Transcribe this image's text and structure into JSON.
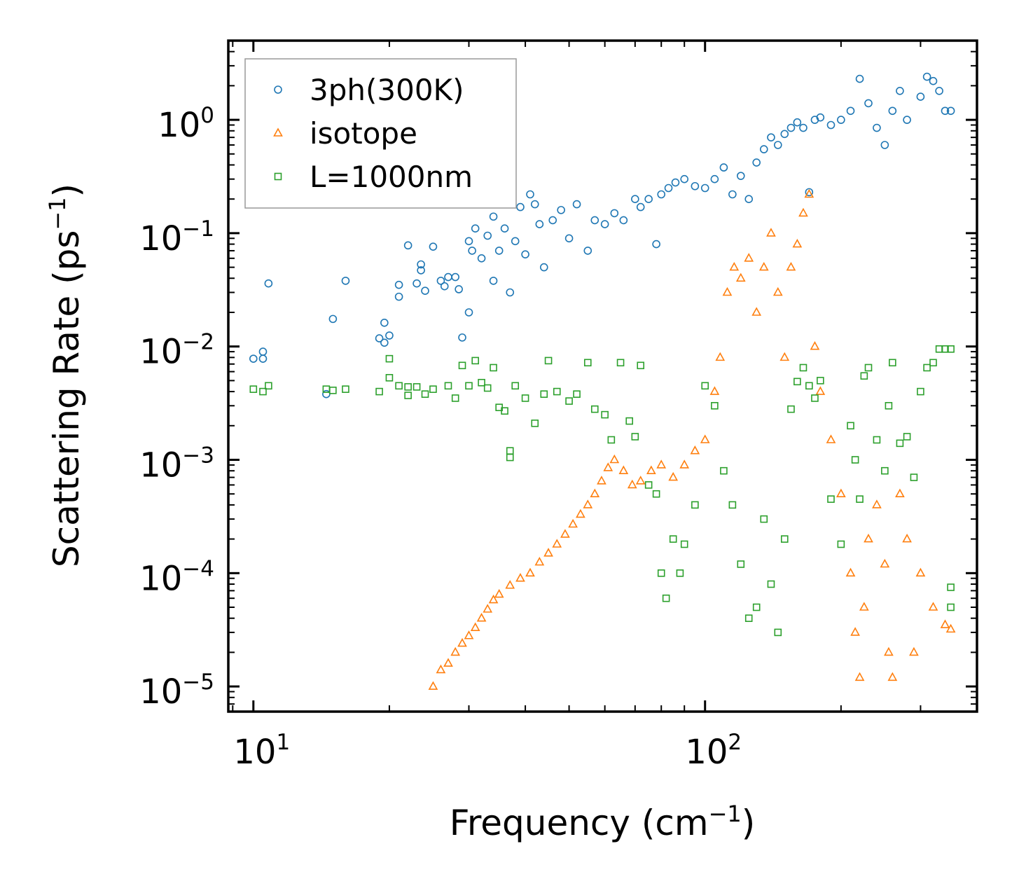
{
  "chart_data": {
    "type": "scatter",
    "title": "",
    "xlabel": "Frequency (cm",
    "xlabel_sup": "−1",
    "xlabel_tail": ")",
    "ylabel": "Scattering Rate (ps",
    "ylabel_sup": "−1",
    "ylabel_tail": ")",
    "xscale": "log",
    "yscale": "log",
    "xlim": [
      8.8,
      400
    ],
    "ylim": [
      6e-06,
      5
    ],
    "x_ticks": [
      {
        "value": 10,
        "base": "10",
        "exp": "1"
      },
      {
        "value": 100,
        "base": "10",
        "exp": "2"
      }
    ],
    "y_ticks": [
      {
        "value": 1,
        "base": "10",
        "exp": "0"
      },
      {
        "value": 0.1,
        "base": "10",
        "exp": "−1"
      },
      {
        "value": 0.01,
        "base": "10",
        "exp": "−2"
      },
      {
        "value": 0.001,
        "base": "10",
        "exp": "−3"
      },
      {
        "value": 0.0001,
        "base": "10",
        "exp": "−4"
      },
      {
        "value": 1e-05,
        "base": "10",
        "exp": "−5"
      }
    ],
    "legend_position": "top-left",
    "series": [
      {
        "name": "3ph(300K)",
        "marker": "circle",
        "color": "#1f77b4",
        "points": [
          [
            10,
            0.0078
          ],
          [
            10.5,
            0.0078
          ],
          [
            10.5,
            0.009
          ],
          [
            10.8,
            0.036
          ],
          [
            14.5,
            0.0038
          ],
          [
            15,
            0.0175
          ],
          [
            16,
            0.038
          ],
          [
            19,
            0.0118
          ],
          [
            19.5,
            0.0108
          ],
          [
            19.5,
            0.0162
          ],
          [
            20,
            0.0125
          ],
          [
            21,
            0.035
          ],
          [
            21,
            0.0275
          ],
          [
            22,
            0.078
          ],
          [
            23,
            0.036
          ],
          [
            23.5,
            0.047
          ],
          [
            23.5,
            0.053
          ],
          [
            24,
            0.031
          ],
          [
            25,
            0.076
          ],
          [
            26,
            0.038
          ],
          [
            26.5,
            0.034
          ],
          [
            27,
            0.041
          ],
          [
            28,
            0.041
          ],
          [
            28.5,
            0.032
          ],
          [
            29,
            0.012
          ],
          [
            30,
            0.02
          ],
          [
            30,
            0.085
          ],
          [
            30.5,
            0.07
          ],
          [
            31,
            0.11
          ],
          [
            32,
            0.06
          ],
          [
            33,
            0.095
          ],
          [
            34,
            0.038
          ],
          [
            34,
            0.14
          ],
          [
            35,
            0.07
          ],
          [
            36,
            0.11
          ],
          [
            37,
            0.03
          ],
          [
            38,
            0.085
          ],
          [
            39,
            0.17
          ],
          [
            40,
            0.065
          ],
          [
            41,
            0.22
          ],
          [
            42,
            0.18
          ],
          [
            43,
            0.12
          ],
          [
            44,
            0.05
          ],
          [
            46,
            0.13
          ],
          [
            48,
            0.16
          ],
          [
            50,
            0.09
          ],
          [
            52,
            0.18
          ],
          [
            55,
            0.07
          ],
          [
            57,
            0.13
          ],
          [
            60,
            0.12
          ],
          [
            63,
            0.15
          ],
          [
            66,
            0.13
          ],
          [
            70,
            0.2
          ],
          [
            72,
            0.17
          ],
          [
            75,
            0.2
          ],
          [
            78,
            0.08
          ],
          [
            80,
            0.22
          ],
          [
            83,
            0.25
          ],
          [
            86,
            0.28
          ],
          [
            90,
            0.3
          ],
          [
            95,
            0.26
          ],
          [
            100,
            0.25
          ],
          [
            105,
            0.3
          ],
          [
            110,
            0.38
          ],
          [
            115,
            0.22
          ],
          [
            120,
            0.32
          ],
          [
            125,
            0.2
          ],
          [
            130,
            0.42
          ],
          [
            135,
            0.55
          ],
          [
            140,
            0.7
          ],
          [
            145,
            0.6
          ],
          [
            150,
            0.75
          ],
          [
            155,
            0.85
          ],
          [
            160,
            0.95
          ],
          [
            165,
            0.85
          ],
          [
            170,
            0.23
          ],
          [
            175,
            1.0
          ],
          [
            180,
            1.05
          ],
          [
            190,
            0.9
          ],
          [
            200,
            1.0
          ],
          [
            210,
            1.2
          ],
          [
            220,
            2.3
          ],
          [
            230,
            1.4
          ],
          [
            240,
            0.85
          ],
          [
            250,
            0.6
          ],
          [
            260,
            1.2
          ],
          [
            270,
            1.8
          ],
          [
            280,
            1.0
          ],
          [
            300,
            1.6
          ],
          [
            310,
            2.4
          ],
          [
            320,
            2.2
          ],
          [
            330,
            1.8
          ],
          [
            340,
            1.2
          ],
          [
            350,
            1.2
          ]
        ]
      },
      {
        "name": "isotope",
        "marker": "triangle",
        "color": "#ff7f0e",
        "points": [
          [
            25,
            1e-05
          ],
          [
            26,
            1.4e-05
          ],
          [
            27,
            1.6e-05
          ],
          [
            28,
            2e-05
          ],
          [
            29,
            2.4e-05
          ],
          [
            30,
            2.8e-05
          ],
          [
            31,
            3.3e-05
          ],
          [
            32,
            4e-05
          ],
          [
            33,
            4.8e-05
          ],
          [
            34,
            5.8e-05
          ],
          [
            35,
            6.5e-05
          ],
          [
            37,
            7.8e-05
          ],
          [
            39,
            9e-05
          ],
          [
            41,
            0.0001
          ],
          [
            43,
            0.000125
          ],
          [
            45,
            0.00015
          ],
          [
            47,
            0.00018
          ],
          [
            49,
            0.00022
          ],
          [
            51,
            0.00027
          ],
          [
            53,
            0.00033
          ],
          [
            55,
            0.0004
          ],
          [
            57,
            0.0005
          ],
          [
            59,
            0.00065
          ],
          [
            61,
            0.00085
          ],
          [
            63,
            0.001
          ],
          [
            66,
            0.0008
          ],
          [
            69,
            0.0006
          ],
          [
            72,
            0.00065
          ],
          [
            76,
            0.0008
          ],
          [
            80,
            0.0009
          ],
          [
            85,
            0.0007
          ],
          [
            90,
            0.0009
          ],
          [
            95,
            0.0012
          ],
          [
            100,
            0.0015
          ],
          [
            105,
            0.004
          ],
          [
            108,
            0.008
          ],
          [
            112,
            0.03
          ],
          [
            116,
            0.05
          ],
          [
            120,
            0.04
          ],
          [
            125,
            0.06
          ],
          [
            130,
            0.02
          ],
          [
            135,
            0.05
          ],
          [
            140,
            0.1
          ],
          [
            145,
            0.03
          ],
          [
            150,
            0.008
          ],
          [
            155,
            0.05
          ],
          [
            160,
            0.08
          ],
          [
            165,
            0.15
          ],
          [
            170,
            0.22
          ],
          [
            175,
            0.01
          ],
          [
            180,
            0.004
          ],
          [
            190,
            0.0015
          ],
          [
            200,
            0.0005
          ],
          [
            210,
            0.0001
          ],
          [
            215,
            3e-05
          ],
          [
            220,
            1.2e-05
          ],
          [
            225,
            5e-05
          ],
          [
            230,
            0.0002
          ],
          [
            240,
            0.0004
          ],
          [
            250,
            0.00012
          ],
          [
            255,
            2e-05
          ],
          [
            260,
            1.2e-05
          ],
          [
            270,
            0.0005
          ],
          [
            280,
            0.0002
          ],
          [
            290,
            2e-05
          ],
          [
            300,
            0.0001
          ],
          [
            320,
            5e-05
          ],
          [
            340,
            3.5e-05
          ],
          [
            350,
            3.2e-05
          ]
        ]
      },
      {
        "name": "L=1000nm",
        "marker": "square",
        "color": "#2ca02c",
        "points": [
          [
            10,
            0.0042
          ],
          [
            10.5,
            0.004
          ],
          [
            10.8,
            0.0045
          ],
          [
            14.5,
            0.0042
          ],
          [
            15,
            0.0041
          ],
          [
            16,
            0.0042
          ],
          [
            19,
            0.004
          ],
          [
            20,
            0.0078
          ],
          [
            20,
            0.0053
          ],
          [
            21,
            0.0045
          ],
          [
            22,
            0.0044
          ],
          [
            22,
            0.0037
          ],
          [
            23,
            0.0044
          ],
          [
            24,
            0.0038
          ],
          [
            25,
            0.0042
          ],
          [
            27,
            0.0045
          ],
          [
            28,
            0.0035
          ],
          [
            29,
            0.0068
          ],
          [
            30,
            0.0045
          ],
          [
            31,
            0.0075
          ],
          [
            32,
            0.0048
          ],
          [
            33,
            0.0043
          ],
          [
            34,
            0.0065
          ],
          [
            35,
            0.0029
          ],
          [
            36,
            0.0027
          ],
          [
            37,
            0.0012
          ],
          [
            37,
            0.00105
          ],
          [
            38,
            0.0045
          ],
          [
            40,
            0.0035
          ],
          [
            42,
            0.0021
          ],
          [
            44,
            0.0038
          ],
          [
            45,
            0.0075
          ],
          [
            47,
            0.004
          ],
          [
            50,
            0.0033
          ],
          [
            52,
            0.0038
          ],
          [
            55,
            0.0072
          ],
          [
            57,
            0.0028
          ],
          [
            60,
            0.0025
          ],
          [
            62,
            0.0015
          ],
          [
            65,
            0.0072
          ],
          [
            68,
            0.0022
          ],
          [
            70,
            0.0016
          ],
          [
            72,
            0.0068
          ],
          [
            75,
            0.0006
          ],
          [
            78,
            0.0005
          ],
          [
            80,
            0.0001
          ],
          [
            82,
            6e-05
          ],
          [
            85,
            0.0002
          ],
          [
            88,
            0.0001
          ],
          [
            90,
            0.00018
          ],
          [
            95,
            0.0004
          ],
          [
            100,
            0.0045
          ],
          [
            105,
            0.003
          ],
          [
            110,
            0.0008
          ],
          [
            115,
            0.0004
          ],
          [
            120,
            0.00012
          ],
          [
            125,
            4e-05
          ],
          [
            130,
            5e-05
          ],
          [
            135,
            0.0003
          ],
          [
            140,
            8e-05
          ],
          [
            145,
            3e-05
          ],
          [
            150,
            0.0002
          ],
          [
            155,
            0.0028
          ],
          [
            160,
            0.0049
          ],
          [
            165,
            0.0065
          ],
          [
            170,
            0.0045
          ],
          [
            175,
            0.0035
          ],
          [
            180,
            0.005
          ],
          [
            190,
            0.00045
          ],
          [
            200,
            0.00018
          ],
          [
            210,
            0.002
          ],
          [
            215,
            0.001
          ],
          [
            220,
            0.00045
          ],
          [
            225,
            0.0055
          ],
          [
            230,
            0.0065
          ],
          [
            240,
            0.0015
          ],
          [
            250,
            0.0008
          ],
          [
            255,
            0.003
          ],
          [
            260,
            0.0072
          ],
          [
            270,
            0.0014
          ],
          [
            280,
            0.0016
          ],
          [
            290,
            0.0007
          ],
          [
            300,
            0.004
          ],
          [
            310,
            0.0065
          ],
          [
            320,
            0.0072
          ],
          [
            330,
            0.0095
          ],
          [
            340,
            0.0095
          ],
          [
            350,
            0.0095
          ],
          [
            350,
            7.5e-05
          ],
          [
            350,
            5e-05
          ]
        ]
      }
    ]
  }
}
